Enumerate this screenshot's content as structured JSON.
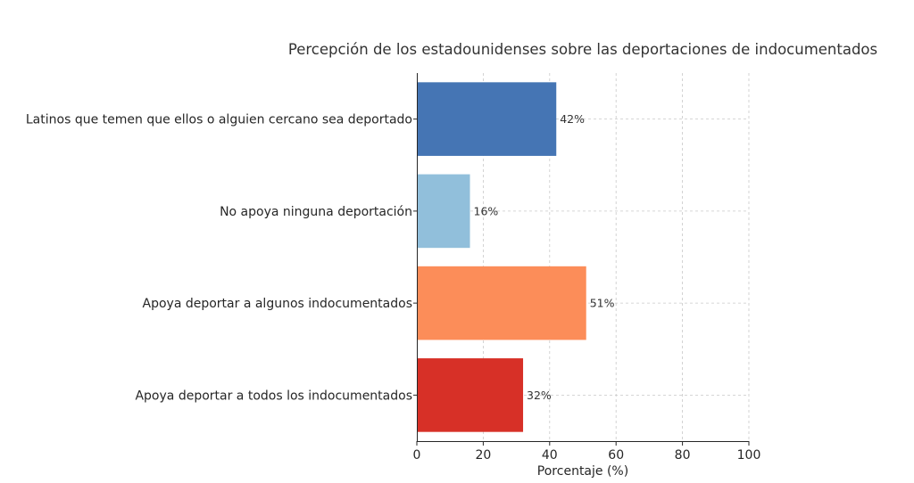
{
  "chart_data": {
    "type": "bar",
    "orientation": "horizontal",
    "title": "Percepción de los estadounidenses sobre las deportaciones de indocumentados",
    "xlabel": "Porcentaje (%)",
    "ylabel": "",
    "xlim": [
      0,
      100
    ],
    "xticks": [
      0,
      20,
      40,
      60,
      80,
      100
    ],
    "grid": true,
    "categories": [
      "Latinos que temen que ellos o alguien cercano sea deportado",
      "No apoya ninguna deportación",
      "Apoya deportar a algunos indocumentados",
      "Apoya deportar a todos los indocumentados"
    ],
    "values": [
      42,
      16,
      51,
      32
    ],
    "data_labels": [
      "42%",
      "16%",
      "51%",
      "32%"
    ],
    "colors": [
      "#4575b4",
      "#91bfdb",
      "#fc8d59",
      "#d73027"
    ]
  }
}
